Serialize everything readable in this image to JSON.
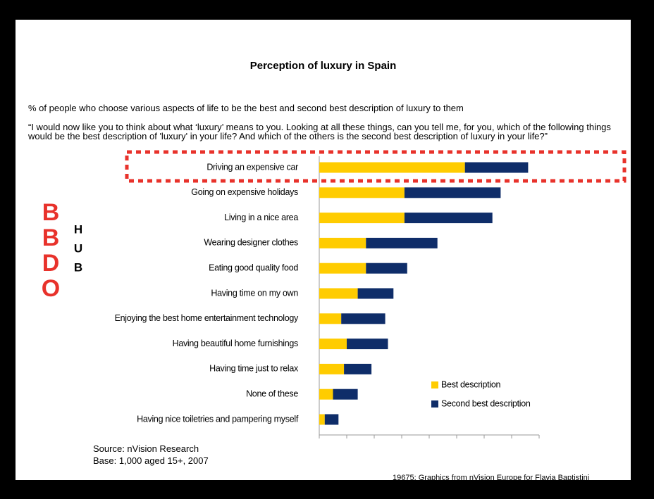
{
  "chart_data": {
    "type": "stacked-bar-horizontal",
    "title": "Perception of luxury in Spain",
    "subtitle": "% of people who choose various aspects of life to be the best and second best description of luxury to them",
    "question": "“I would now like you to think about what ‘luxury’ means to you. Looking at all these things, can you tell me, for you, which of the following things would be the best description of 'luxury' in your life? And which of the others is the second best description of luxury in your life?”",
    "categories": [
      "Driving an expensive car",
      "Going on expensive holidays",
      "Living in a nice area",
      "Wearing designer clothes",
      "Eating good quality food",
      "Having time on my own",
      "Enjoying the best home entertainment technology",
      "Having beautiful home furnishings",
      "Having time just to relax",
      "None of these",
      "Having nice toiletries and pampering myself"
    ],
    "series": [
      {
        "name": "Best description",
        "color": "#ffcc00",
        "values": [
          53,
          31,
          31,
          17,
          17,
          14,
          8,
          10,
          9,
          5,
          2
        ]
      },
      {
        "name": "Second best description",
        "color": "#0f2d69",
        "values": [
          23,
          35,
          32,
          26,
          15,
          13,
          16,
          15,
          10,
          9,
          5
        ]
      }
    ],
    "xlim": [
      0,
      80
    ],
    "xticks": [
      0,
      10,
      20,
      30,
      40,
      50,
      60,
      70,
      80
    ],
    "legend": "lower right",
    "source": "Source: nVision Research",
    "base": "Base: 1,000 aged 15+, 2007",
    "footer": "19675: Graphics from  nVision Europe  for Flavia Baptistini",
    "logo": {
      "main": [
        "B",
        "B",
        "D",
        "O"
      ],
      "side": [
        "H",
        "U",
        "B"
      ]
    }
  }
}
